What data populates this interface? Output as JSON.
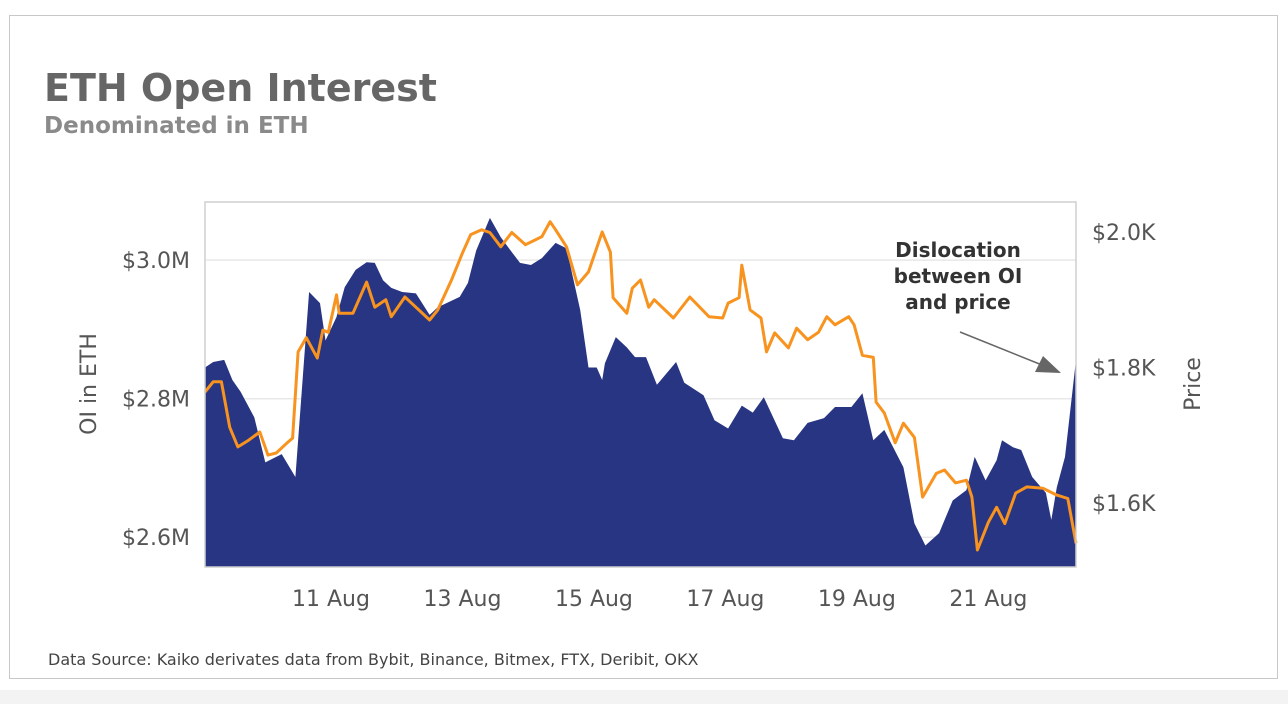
{
  "title": "ETH Open Interest",
  "subtitle": "Denominated in ETH",
  "source": "Data Source: Kaiko derivates data from Bybit, Binance, Bitmex, FTX, Deribit, OKX",
  "colors": {
    "oi_area": "#283583",
    "price_line": "#f7931e",
    "grid": "#e8e8e8",
    "arrow": "#666666"
  },
  "chart_data": {
    "type": "area+line",
    "title": "ETH Open Interest",
    "subtitle": "Denominated in ETH",
    "ylabel": "OI in ETH",
    "y2label": "Price",
    "xlim": [
      "9 Aug 02:00",
      "22 Aug 08:00"
    ],
    "ylim": [
      2557000,
      3084000
    ],
    "y2lim": [
      1506,
      2044
    ],
    "grid": "horizontal",
    "x_ticks": [
      "11 Aug",
      "13 Aug",
      "15 Aug",
      "17 Aug",
      "19 Aug",
      "21 Aug"
    ],
    "y_ticks": [
      {
        "value": 3000000,
        "label": "$3.0M"
      },
      {
        "value": 2800000,
        "label": "$2.8M"
      },
      {
        "value": 2600000,
        "label": "$2.6M"
      }
    ],
    "y2_ticks": [
      {
        "value": 2000,
        "label": "$2.0K"
      },
      {
        "value": 1800,
        "label": "$1.8K"
      },
      {
        "value": 1600,
        "label": "$1.6K"
      }
    ],
    "annotation": {
      "lines": [
        "Dislocation",
        "between OI",
        "and price"
      ],
      "points_to": "22 Aug 08:00"
    },
    "series": [
      {
        "type": "area",
        "axis": "left",
        "points": [
          [
            "9 Aug 02:00",
            2845000
          ],
          [
            "9 Aug 05:00",
            2853000
          ],
          [
            "9 Aug 09:00",
            2856000
          ],
          [
            "9 Aug 12:00",
            2827000
          ],
          [
            "9 Aug 15:00",
            2810000
          ],
          [
            "9 Aug 20:00",
            2773000
          ],
          [
            "10 Aug 00:00",
            2708000
          ],
          [
            "10 Aug 06:00",
            2720000
          ],
          [
            "10 Aug 11:00",
            2687000
          ],
          [
            "10 Aug 16:00",
            2954000
          ],
          [
            "10 Aug 20:00",
            2938000
          ],
          [
            "10 Aug 22:00",
            2884000
          ],
          [
            "11 Aug 02:00",
            2918000
          ],
          [
            "11 Aug 05:00",
            2961000
          ],
          [
            "11 Aug 09:00",
            2986000
          ],
          [
            "11 Aug 13:00",
            2997000
          ],
          [
            "11 Aug 16:00",
            2996000
          ],
          [
            "11 Aug 19:00",
            2971000
          ],
          [
            "11 Aug 22:00",
            2960000
          ],
          [
            "12 Aug 02:00",
            2954000
          ],
          [
            "12 Aug 07:00",
            2952000
          ],
          [
            "12 Aug 12:00",
            2921000
          ],
          [
            "12 Aug 15:00",
            2932000
          ],
          [
            "12 Aug 23:00",
            2947000
          ],
          [
            "13 Aug 02:00",
            2967000
          ],
          [
            "13 Aug 05:00",
            3014000
          ],
          [
            "13 Aug 10:00",
            3061000
          ],
          [
            "13 Aug 14:00",
            3033000
          ],
          [
            "13 Aug 17:00",
            3017000
          ],
          [
            "13 Aug 21:00",
            2996000
          ],
          [
            "14 Aug 01:00",
            2993000
          ],
          [
            "14 Aug 05:00",
            3003000
          ],
          [
            "14 Aug 10:00",
            3025000
          ],
          [
            "14 Aug 14:00",
            3017000
          ],
          [
            "14 Aug 19:00",
            2928000
          ],
          [
            "14 Aug 22:00",
            2845000
          ],
          [
            "15 Aug 01:00",
            2845000
          ],
          [
            "15 Aug 03:00",
            2827000
          ],
          [
            "15 Aug 04:00",
            2851000
          ],
          [
            "15 Aug 08:00",
            2889000
          ],
          [
            "15 Aug 12:00",
            2874000
          ],
          [
            "15 Aug 15:00",
            2860000
          ],
          [
            "15 Aug 19:00",
            2860000
          ],
          [
            "15 Aug 23:00",
            2820000
          ],
          [
            "16 Aug 06:00",
            2853000
          ],
          [
            "16 Aug 09:00",
            2823000
          ],
          [
            "16 Aug 16:00",
            2805000
          ],
          [
            "16 Aug 20:00",
            2769000
          ],
          [
            "17 Aug 01:00",
            2757000
          ],
          [
            "17 Aug 06:00",
            2790000
          ],
          [
            "17 Aug 10:00",
            2780000
          ],
          [
            "17 Aug 14:00",
            2802000
          ],
          [
            "17 Aug 21:00",
            2743000
          ],
          [
            "18 Aug 01:00",
            2740000
          ],
          [
            "18 Aug 06:00",
            2765000
          ],
          [
            "18 Aug 12:00",
            2772000
          ],
          [
            "18 Aug 16:00",
            2788000
          ],
          [
            "18 Aug 22:00",
            2788000
          ],
          [
            "19 Aug 02:00",
            2808000
          ],
          [
            "19 Aug 06:00",
            2740000
          ],
          [
            "19 Aug 10:00",
            2755000
          ],
          [
            "19 Aug 17:00",
            2701000
          ],
          [
            "19 Aug 21:00",
            2620000
          ],
          [
            "20 Aug 01:00",
            2588000
          ],
          [
            "20 Aug 06:00",
            2606000
          ],
          [
            "20 Aug 11:00",
            2653000
          ],
          [
            "20 Aug 16:00",
            2668000
          ],
          [
            "20 Aug 19:00",
            2716000
          ],
          [
            "20 Aug 23:00",
            2682000
          ],
          [
            "21 Aug 03:00",
            2711000
          ],
          [
            "21 Aug 05:00",
            2740000
          ],
          [
            "21 Aug 09:00",
            2730000
          ],
          [
            "21 Aug 12:00",
            2726000
          ],
          [
            "21 Aug 16:00",
            2687000
          ],
          [
            "21 Aug 21:00",
            2664000
          ],
          [
            "21 Aug 23:00",
            2625000
          ],
          [
            "22 Aug 01:00",
            2672000
          ],
          [
            "22 Aug 04:00",
            2716000
          ],
          [
            "22 Aug 08:00",
            2856000
          ]
        ]
      },
      {
        "type": "line",
        "axis": "right",
        "points": [
          [
            "9 Aug 02:00",
            1764
          ],
          [
            "9 Aug 05:00",
            1779
          ],
          [
            "9 Aug 08:00",
            1779
          ],
          [
            "9 Aug 11:00",
            1712
          ],
          [
            "9 Aug 14:00",
            1683
          ],
          [
            "9 Aug 18:00",
            1693
          ],
          [
            "9 Aug 22:00",
            1705
          ],
          [
            "10 Aug 01:00",
            1671
          ],
          [
            "10 Aug 04:00",
            1674
          ],
          [
            "10 Aug 08:00",
            1689
          ],
          [
            "10 Aug 10:00",
            1696
          ],
          [
            "10 Aug 12:00",
            1823
          ],
          [
            "10 Aug 15:00",
            1844
          ],
          [
            "10 Aug 19:00",
            1814
          ],
          [
            "10 Aug 21:00",
            1855
          ],
          [
            "10 Aug 23:00",
            1852
          ],
          [
            "11 Aug 02:00",
            1907
          ],
          [
            "11 Aug 03:00",
            1880
          ],
          [
            "11 Aug 08:00",
            1880
          ],
          [
            "11 Aug 13:00",
            1926
          ],
          [
            "11 Aug 16:00",
            1889
          ],
          [
            "11 Aug 20:00",
            1900
          ],
          [
            "11 Aug 22:00",
            1875
          ],
          [
            "12 Aug 03:00",
            1904
          ],
          [
            "12 Aug 07:00",
            1889
          ],
          [
            "12 Aug 12:00",
            1870
          ],
          [
            "12 Aug 15:00",
            1885
          ],
          [
            "12 Aug 20:00",
            1929
          ],
          [
            "13 Aug 00:00",
            1969
          ],
          [
            "13 Aug 03:00",
            1996
          ],
          [
            "13 Aug 07:00",
            2003
          ],
          [
            "13 Aug 10:00",
            1999
          ],
          [
            "13 Aug 14:00",
            1978
          ],
          [
            "13 Aug 18:00",
            1999
          ],
          [
            "13 Aug 23:00",
            1981
          ],
          [
            "14 Aug 05:00",
            1993
          ],
          [
            "14 Aug 08:00",
            2015
          ],
          [
            "14 Aug 10:00",
            2003
          ],
          [
            "14 Aug 14:00",
            1978
          ],
          [
            "14 Aug 18:00",
            1922
          ],
          [
            "14 Aug 22:00",
            1941
          ],
          [
            "15 Aug 03:00",
            2000
          ],
          [
            "15 Aug 06:00",
            1970
          ],
          [
            "15 Aug 07:00",
            1903
          ],
          [
            "15 Aug 12:00",
            1880
          ],
          [
            "15 Aug 14:00",
            1917
          ],
          [
            "15 Aug 17:00",
            1929
          ],
          [
            "15 Aug 20:00",
            1889
          ],
          [
            "15 Aug 22:00",
            1900
          ],
          [
            "16 Aug 05:00",
            1873
          ],
          [
            "16 Aug 11:00",
            1904
          ],
          [
            "16 Aug 18:00",
            1875
          ],
          [
            "16 Aug 23:00",
            1873
          ],
          [
            "17 Aug 01:00",
            1895
          ],
          [
            "17 Aug 05:00",
            1903
          ],
          [
            "17 Aug 06:00",
            1951
          ],
          [
            "17 Aug 09:00",
            1885
          ],
          [
            "17 Aug 13:00",
            1873
          ],
          [
            "17 Aug 15:00",
            1823
          ],
          [
            "17 Aug 18:00",
            1851
          ],
          [
            "17 Aug 23:00",
            1829
          ],
          [
            "18 Aug 02:00",
            1858
          ],
          [
            "18 Aug 06:00",
            1841
          ],
          [
            "18 Aug 10:00",
            1852
          ],
          [
            "18 Aug 13:00",
            1875
          ],
          [
            "18 Aug 16:00",
            1863
          ],
          [
            "18 Aug 21:00",
            1875
          ],
          [
            "18 Aug 23:00",
            1863
          ],
          [
            "19 Aug 02:00",
            1818
          ],
          [
            "19 Aug 06:00",
            1815
          ],
          [
            "19 Aug 07:00",
            1749
          ],
          [
            "19 Aug 10:00",
            1733
          ],
          [
            "19 Aug 14:00",
            1689
          ],
          [
            "19 Aug 17:00",
            1718
          ],
          [
            "19 Aug 21:00",
            1697
          ],
          [
            "20 Aug 00:00",
            1609
          ],
          [
            "20 Aug 05:00",
            1644
          ],
          [
            "20 Aug 08:00",
            1649
          ],
          [
            "20 Aug 12:00",
            1630
          ],
          [
            "20 Aug 16:00",
            1634
          ],
          [
            "20 Aug 18:00",
            1609
          ],
          [
            "20 Aug 20:00",
            1531
          ],
          [
            "21 Aug 00:00",
            1572
          ],
          [
            "21 Aug 03:00",
            1594
          ],
          [
            "21 Aug 06:00",
            1570
          ],
          [
            "21 Aug 10:00",
            1615
          ],
          [
            "21 Aug 14:00",
            1624
          ],
          [
            "21 Aug 20:00",
            1622
          ],
          [
            "22 Aug 01:00",
            1612
          ],
          [
            "22 Aug 05:00",
            1607
          ],
          [
            "22 Aug 08:00",
            1541
          ]
        ]
      }
    ]
  }
}
